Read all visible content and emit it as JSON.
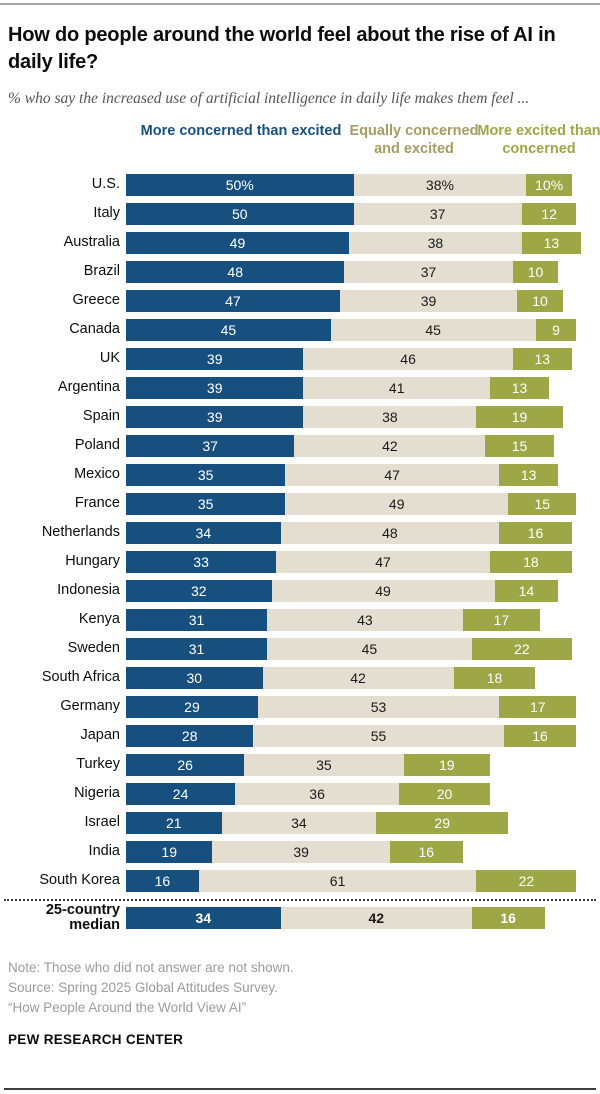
{
  "header": {
    "title": "How do people around the world feel about the rise of AI in daily life?",
    "subtitle": "% who say the increased use of artificial intelligence in daily life makes them feel ..."
  },
  "chart_data": {
    "type": "bar",
    "orientation": "horizontal",
    "stacked": true,
    "unit": "percent",
    "axis_range": [
      0,
      100
    ],
    "grid": false,
    "legend_position": "top",
    "series": [
      {
        "name": "More concerned than excited",
        "color": "#17507E",
        "text_color": "#ffffff",
        "header_color": "#17507E"
      },
      {
        "name": "Equally concerned and excited",
        "color": "#E3DED0",
        "text_color": "#1a1a1a",
        "header_color": "#A79C63"
      },
      {
        "name": "More excited than concerned",
        "color": "#9DA746",
        "text_color": "#ffffff",
        "header_color": "#9DA746"
      }
    ],
    "rows": [
      {
        "label": "U.S.",
        "values": [
          50,
          38,
          10
        ],
        "display": [
          "50%",
          "38%",
          "10%"
        ]
      },
      {
        "label": "Italy",
        "values": [
          50,
          37,
          12
        ]
      },
      {
        "label": "Australia",
        "values": [
          49,
          38,
          13
        ]
      },
      {
        "label": "Brazil",
        "values": [
          48,
          37,
          10
        ]
      },
      {
        "label": "Greece",
        "values": [
          47,
          39,
          10
        ]
      },
      {
        "label": "Canada",
        "values": [
          45,
          45,
          9
        ]
      },
      {
        "label": "UK",
        "values": [
          39,
          46,
          13
        ]
      },
      {
        "label": "Argentina",
        "values": [
          39,
          41,
          13
        ]
      },
      {
        "label": "Spain",
        "values": [
          39,
          38,
          19
        ]
      },
      {
        "label": "Poland",
        "values": [
          37,
          42,
          15
        ]
      },
      {
        "label": "Mexico",
        "values": [
          35,
          47,
          13
        ]
      },
      {
        "label": "France",
        "values": [
          35,
          49,
          15
        ]
      },
      {
        "label": "Netherlands",
        "values": [
          34,
          48,
          16
        ]
      },
      {
        "label": "Hungary",
        "values": [
          33,
          47,
          18
        ]
      },
      {
        "label": "Indonesia",
        "values": [
          32,
          49,
          14
        ]
      },
      {
        "label": "Kenya",
        "values": [
          31,
          43,
          17
        ]
      },
      {
        "label": "Sweden",
        "values": [
          31,
          45,
          22
        ]
      },
      {
        "label": "South Africa",
        "values": [
          30,
          42,
          18
        ]
      },
      {
        "label": "Germany",
        "values": [
          29,
          53,
          17
        ]
      },
      {
        "label": "Japan",
        "values": [
          28,
          55,
          16
        ]
      },
      {
        "label": "Turkey",
        "values": [
          26,
          35,
          19
        ]
      },
      {
        "label": "Nigeria",
        "values": [
          24,
          36,
          20
        ]
      },
      {
        "label": "Israel",
        "values": [
          21,
          34,
          29
        ]
      },
      {
        "label": "India",
        "values": [
          19,
          39,
          16
        ]
      },
      {
        "label": "South Korea",
        "values": [
          16,
          61,
          22
        ]
      },
      {
        "label": "25-country median",
        "values": [
          34,
          42,
          16
        ],
        "median": true
      }
    ]
  },
  "footer": {
    "note": "Note: Those who did not answer are not shown.",
    "source": "Source: Spring 2025 Global Attitudes Survey.",
    "report": "“How People Around the World View AI”",
    "brand": "PEW RESEARCH CENTER"
  }
}
